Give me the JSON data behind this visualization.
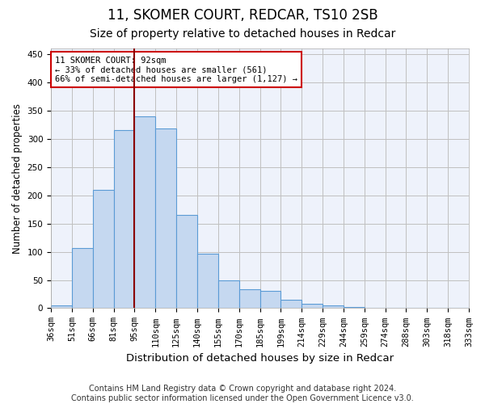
{
  "title_line1": "11, SKOMER COURT, REDCAR, TS10 2SB",
  "title_line2": "Size of property relative to detached houses in Redcar",
  "xlabel": "Distribution of detached houses by size in Redcar",
  "ylabel": "Number of detached properties",
  "footer_line1": "Contains HM Land Registry data © Crown copyright and database right 2024.",
  "footer_line2": "Contains public sector information licensed under the Open Government Licence v3.0.",
  "tick_labels": [
    "36sqm",
    "51sqm",
    "66sqm",
    "81sqm",
    "95sqm",
    "110sqm",
    "125sqm",
    "140sqm",
    "155sqm",
    "170sqm",
    "185sqm",
    "199sqm",
    "214sqm",
    "229sqm",
    "244sqm",
    "259sqm",
    "274sqm",
    "288sqm",
    "303sqm",
    "318sqm",
    "333sqm"
  ],
  "values": [
    5,
    106,
    210,
    315,
    340,
    318,
    165,
    97,
    50,
    34,
    30,
    15,
    8,
    5,
    2,
    1,
    0,
    0,
    0,
    0
  ],
  "bar_color": "#c5d8f0",
  "bar_edge_color": "#5b9bd5",
  "vline_pos": 3.5,
  "vline_color": "#8b0000",
  "annotation_text": "11 SKOMER COURT: 92sqm\n← 33% of detached houses are smaller (561)\n66% of semi-detached houses are larger (1,127) →",
  "annotation_box_color": "#ffffff",
  "annotation_box_edge": "#cc0000",
  "ylim": [
    0,
    460
  ],
  "yticks": [
    0,
    50,
    100,
    150,
    200,
    250,
    300,
    350,
    400,
    450
  ],
  "grid_color": "#c0c0c0",
  "background_color": "#eef2fb",
  "title1_fontsize": 12,
  "title2_fontsize": 10,
  "xlabel_fontsize": 9.5,
  "ylabel_fontsize": 8.5,
  "tick_fontsize": 7.5,
  "footer_fontsize": 7.0
}
